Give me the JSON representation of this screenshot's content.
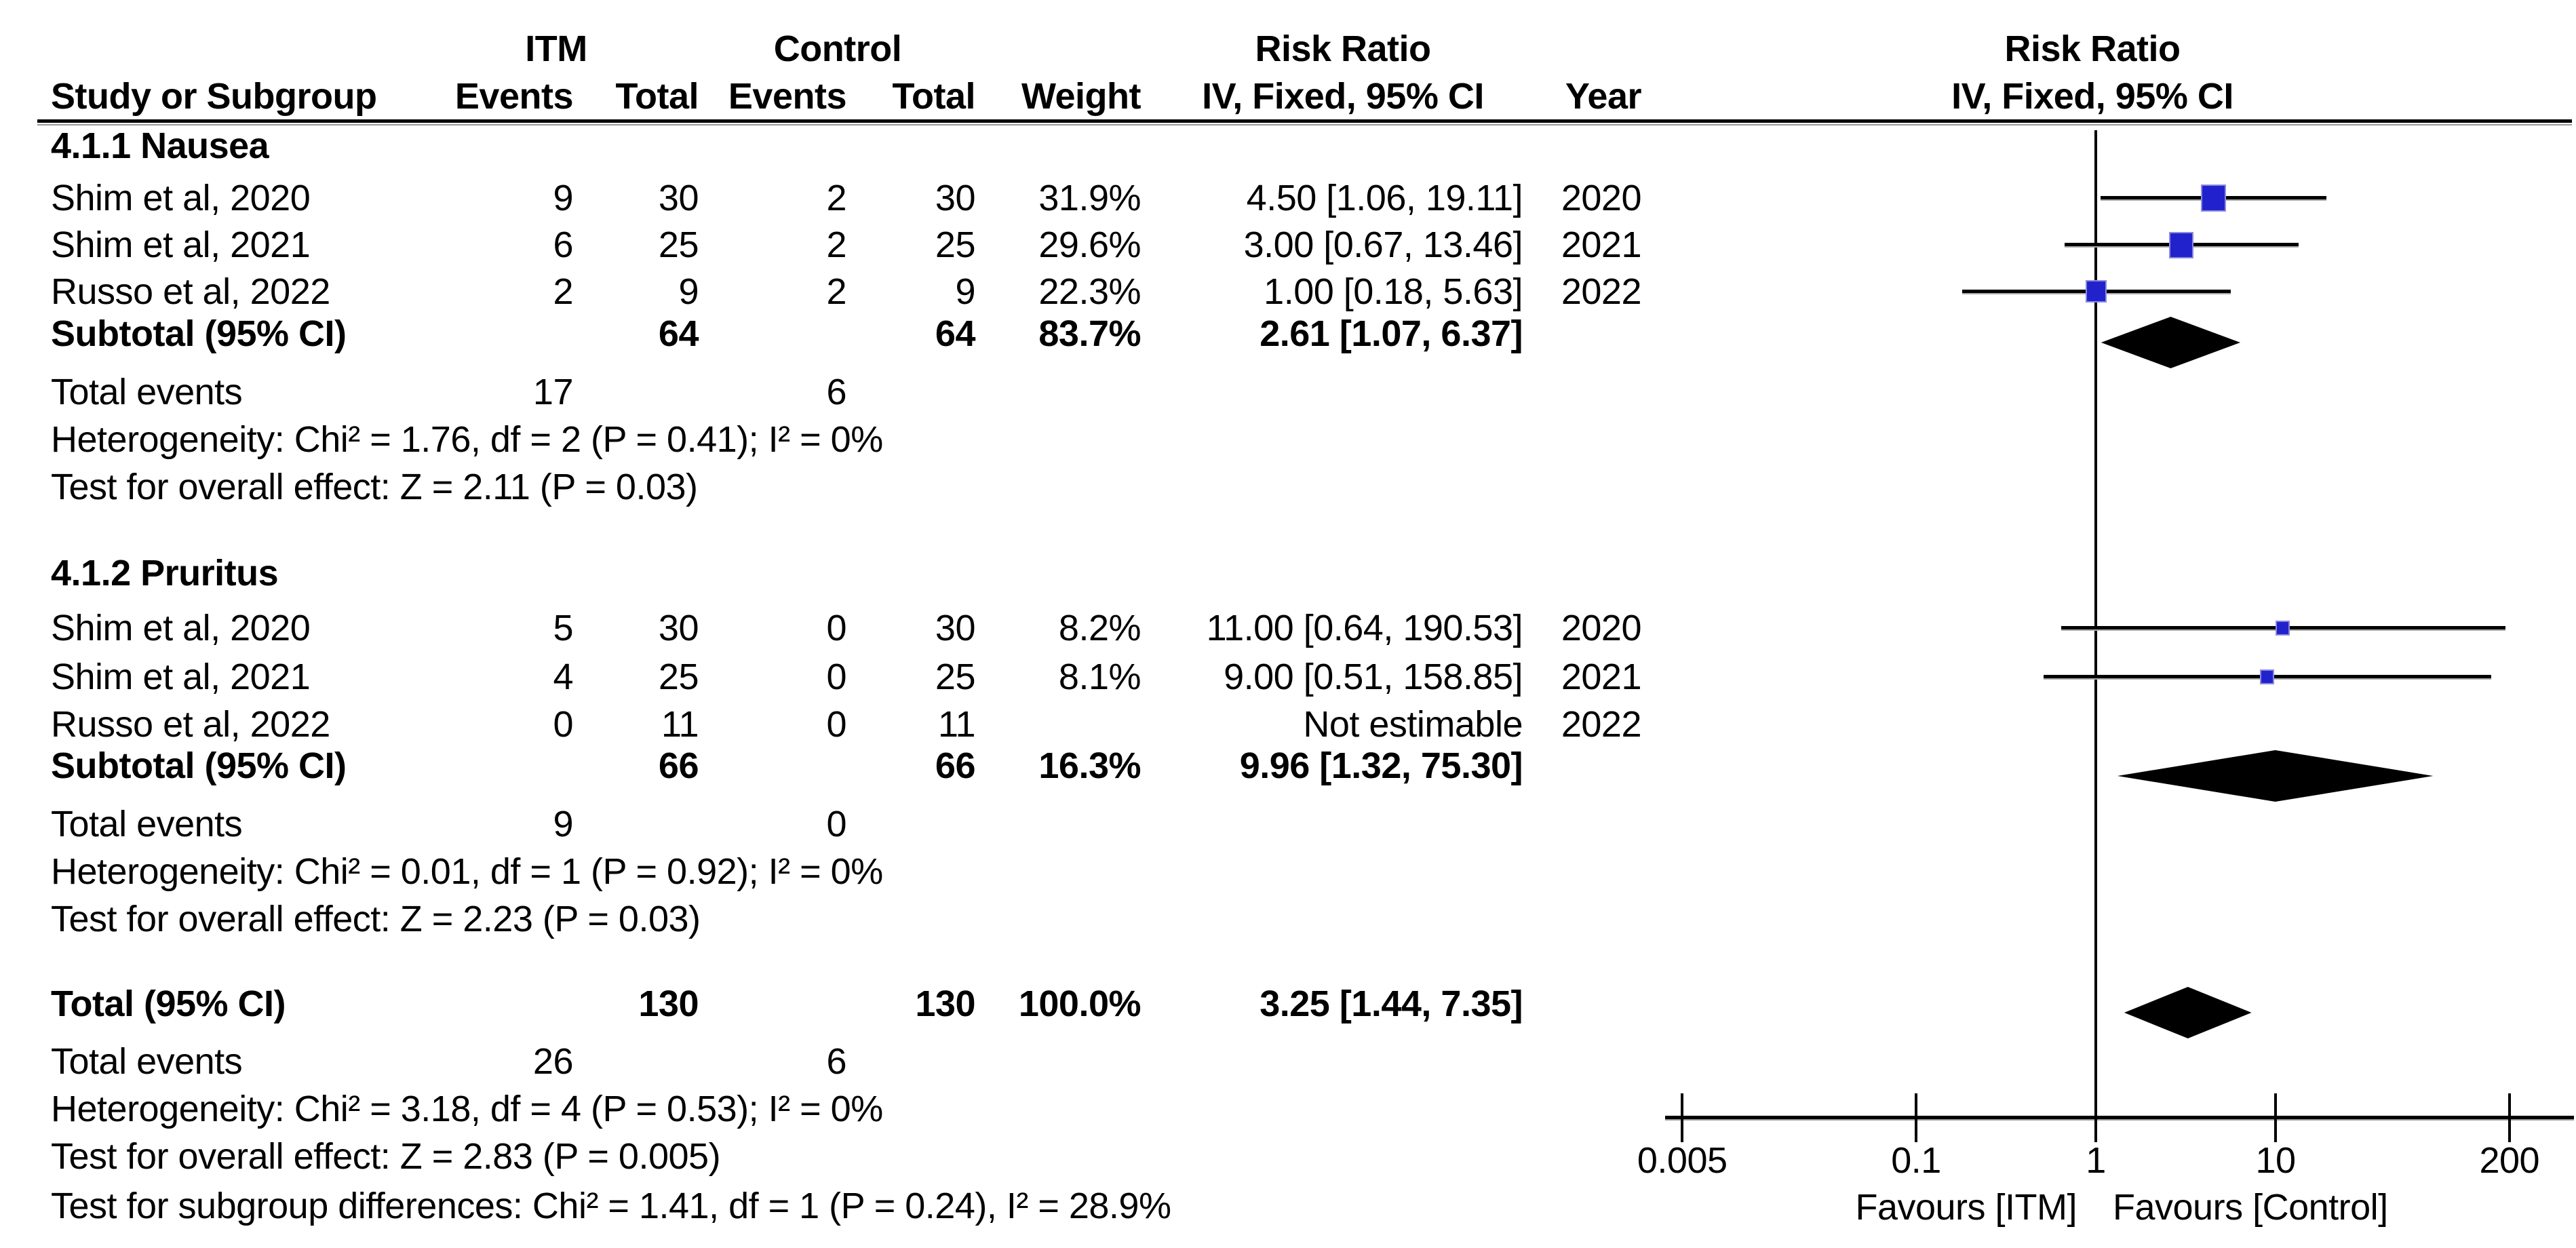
{
  "header": {
    "group_itm": "ITM",
    "group_control": "Control",
    "group_risk_ratio": "Risk Ratio",
    "group_risk_ratio_plot": "Risk Ratio",
    "col_study": "Study or Subgroup",
    "col_events_itm": "Events",
    "col_total_itm": "Total",
    "col_events_ctl": "Events",
    "col_total_ctl": "Total",
    "col_weight": "Weight",
    "col_iv": "IV, Fixed, 95% CI",
    "col_year": "Year",
    "col_iv_plot": "IV, Fixed, 95% CI"
  },
  "sections": [
    {
      "label": "4.1.1 Nausea",
      "studies": [
        {
          "name": "Shim et al, 2020",
          "e1": "9",
          "t1": "30",
          "e2": "2",
          "t2": "30",
          "weight": "31.9%",
          "rr": "4.50 [1.06, 19.11]",
          "year": "2020"
        },
        {
          "name": "Shim et al, 2021",
          "e1": "6",
          "t1": "25",
          "e2": "2",
          "t2": "25",
          "weight": "29.6%",
          "rr": "3.00 [0.67, 13.46]",
          "year": "2021"
        },
        {
          "name": "Russo et al, 2022",
          "e1": "2",
          "t1": "9",
          "e2": "2",
          "t2": "9",
          "weight": "22.3%",
          "rr": "1.00 [0.18, 5.63]",
          "year": "2022"
        }
      ],
      "subtotal": {
        "label": "Subtotal (95% CI)",
        "t1": "64",
        "t2": "64",
        "weight": "83.7%",
        "rr": "2.61 [1.07, 6.37]"
      },
      "total_events": {
        "label": "Total events",
        "e1": "17",
        "e2": "6"
      },
      "heterogeneity": "Heterogeneity: Chi² = 1.76, df = 2 (P = 0.41); I² = 0%",
      "overall": "Test for overall effect: Z = 2.11 (P = 0.03)"
    },
    {
      "label": "4.1.2 Pruritus",
      "studies": [
        {
          "name": "Shim et al, 2020",
          "e1": "5",
          "t1": "30",
          "e2": "0",
          "t2": "30",
          "weight": "8.2%",
          "rr": "11.00 [0.64, 190.53]",
          "year": "2020"
        },
        {
          "name": "Shim et al, 2021",
          "e1": "4",
          "t1": "25",
          "e2": "0",
          "t2": "25",
          "weight": "8.1%",
          "rr": "9.00 [0.51, 158.85]",
          "year": "2021"
        },
        {
          "name": "Russo et al, 2022",
          "e1": "0",
          "t1": "11",
          "e2": "0",
          "t2": "11",
          "weight": "",
          "rr": "Not estimable",
          "year": "2022"
        }
      ],
      "subtotal": {
        "label": "Subtotal (95% CI)",
        "t1": "66",
        "t2": "66",
        "weight": "16.3%",
        "rr": "9.96 [1.32, 75.30]"
      },
      "total_events": {
        "label": "Total events",
        "e1": "9",
        "e2": "0"
      },
      "heterogeneity": "Heterogeneity: Chi² = 0.01, df = 1 (P = 0.92); I² = 0%",
      "overall": "Test for overall effect: Z = 2.23 (P = 0.03)"
    }
  ],
  "totals": {
    "row": {
      "label": "Total (95% CI)",
      "t1": "130",
      "t2": "130",
      "weight": "100.0%",
      "rr": "3.25 [1.44, 7.35]"
    },
    "total_events": {
      "label": "Total events",
      "e1": "26",
      "e2": "6"
    },
    "heterogeneity": "Heterogeneity: Chi² = 3.18, df = 4 (P = 0.53); I² = 0%",
    "overall": "Test for overall effect: Z = 2.83 (P = 0.005)",
    "subgroup": "Test for subgroup differences: Chi² = 1.41, df = 1 (P = 0.24), I² = 28.9%"
  },
  "chart_data": {
    "type": "forest",
    "effect_measure": "Risk Ratio",
    "model": "IV, Fixed, 95% CI",
    "x_scale": "log10",
    "axis_tick_labels": [
      "0.005",
      "0.1",
      "1",
      "10",
      "200"
    ],
    "null_value": 1,
    "favours_left": "Favours [ITM]",
    "favours_right": "Favours [Control]",
    "marker_color": "#2222cc",
    "studies": [
      {
        "subgroup": "Nausea",
        "name": "Shim et al, 2020",
        "rr": 4.5,
        "ci_low": 1.06,
        "ci_high": 19.11,
        "weight_pct": 31.9,
        "year": 2020
      },
      {
        "subgroup": "Nausea",
        "name": "Shim et al, 2021",
        "rr": 3.0,
        "ci_low": 0.67,
        "ci_high": 13.46,
        "weight_pct": 29.6,
        "year": 2021
      },
      {
        "subgroup": "Nausea",
        "name": "Russo et al, 2022",
        "rr": 1.0,
        "ci_low": 0.18,
        "ci_high": 5.63,
        "weight_pct": 22.3,
        "year": 2022
      },
      {
        "subgroup": "Pruritus",
        "name": "Shim et al, 2020",
        "rr": 11.0,
        "ci_low": 0.64,
        "ci_high": 190.53,
        "weight_pct": 8.2,
        "year": 2020
      },
      {
        "subgroup": "Pruritus",
        "name": "Shim et al, 2021",
        "rr": 9.0,
        "ci_low": 0.51,
        "ci_high": 158.85,
        "weight_pct": 8.1,
        "year": 2021
      },
      {
        "subgroup": "Pruritus",
        "name": "Russo et al, 2022",
        "rr": null,
        "ci_low": null,
        "ci_high": null,
        "weight_pct": null,
        "year": 2022,
        "note": "Not estimable"
      }
    ],
    "summaries": [
      {
        "label": "Subtotal Nausea",
        "rr": 2.61,
        "ci_low": 1.07,
        "ci_high": 6.37
      },
      {
        "label": "Subtotal Pruritus",
        "rr": 9.96,
        "ci_low": 1.32,
        "ci_high": 75.3
      },
      {
        "label": "Total",
        "rr": 3.25,
        "ci_low": 1.44,
        "ci_high": 7.35
      }
    ]
  }
}
